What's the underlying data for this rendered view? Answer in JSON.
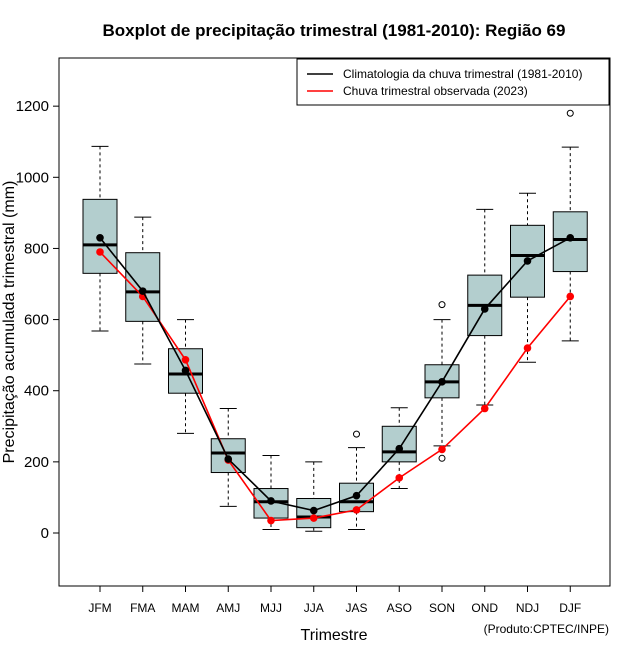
{
  "chart_data": {
    "type": "boxplot",
    "title": "Boxplot de precipitação trimestral (1981-2010): Região 69",
    "xlabel": "Trimestre",
    "ylabel": "Precipitação acumulada trimestral (mm)",
    "ylim": [
      -150,
      1330
    ],
    "yticks": [
      0,
      200,
      400,
      600,
      800,
      1000,
      1200
    ],
    "categories": [
      "JFM",
      "FMA",
      "MAM",
      "AMJ",
      "MJJ",
      "JJA",
      "JAS",
      "ASO",
      "SON",
      "OND",
      "NDJ",
      "DJF"
    ],
    "boxes": [
      {
        "min": 568,
        "q1": 730,
        "median": 810,
        "q3": 938,
        "max": 1087,
        "outliers": []
      },
      {
        "min": 475,
        "q1": 595,
        "median": 678,
        "q3": 788,
        "max": 888,
        "outliers": []
      },
      {
        "min": 280,
        "q1": 393,
        "median": 447,
        "q3": 518,
        "max": 600,
        "outliers": []
      },
      {
        "min": 75,
        "q1": 170,
        "median": 225,
        "q3": 265,
        "max": 350,
        "outliers": []
      },
      {
        "min": 10,
        "q1": 42,
        "median": 88,
        "q3": 125,
        "max": 218,
        "outliers": []
      },
      {
        "min": 5,
        "q1": 15,
        "median": 45,
        "q3": 97,
        "max": 200,
        "outliers": []
      },
      {
        "min": 10,
        "q1": 60,
        "median": 88,
        "q3": 140,
        "max": 240,
        "outliers": [
          278
        ]
      },
      {
        "min": 125,
        "q1": 200,
        "median": 228,
        "q3": 300,
        "max": 352,
        "outliers": []
      },
      {
        "min": 245,
        "q1": 380,
        "median": 425,
        "q3": 473,
        "max": 600,
        "outliers": [
          642,
          210
        ]
      },
      {
        "min": 360,
        "q1": 555,
        "median": 640,
        "q3": 725,
        "max": 910,
        "outliers": []
      },
      {
        "min": 480,
        "q1": 663,
        "median": 780,
        "q3": 865,
        "max": 955,
        "outliers": []
      },
      {
        "min": 540,
        "q1": 735,
        "median": 825,
        "q3": 903,
        "max": 1085,
        "outliers": [
          1180
        ]
      }
    ],
    "series": [
      {
        "name": "Climatologia da chuva trimestral (1981-2010)",
        "color": "#000000",
        "values": [
          830,
          680,
          457,
          208,
          90,
          63,
          105,
          237,
          425,
          630,
          765,
          830
        ]
      },
      {
        "name": "Chuva trimestral observada (2023)",
        "color": "#ff0000",
        "values": [
          790,
          665,
          487,
          205,
          35,
          42,
          65,
          155,
          235,
          350,
          520,
          665
        ]
      }
    ],
    "legend_position": "top-right",
    "box_fill": "#b3cece",
    "source": "(Produto:CPTEC/INPE)"
  }
}
